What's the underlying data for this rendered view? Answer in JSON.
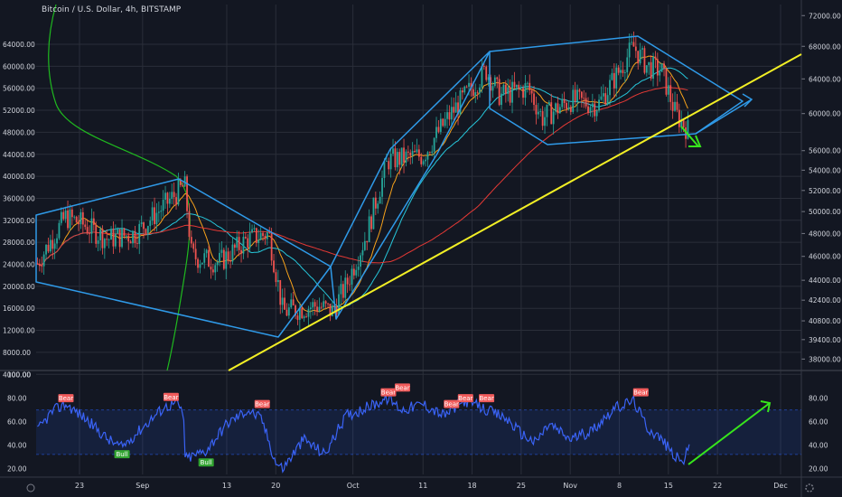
{
  "title": "Bitcoin / U.S. Dollar, 4h, BITSTAMP",
  "colors": {
    "background": "#131722",
    "grid": "#2a2e39",
    "up": "#26a69a",
    "down": "#ef5350",
    "ma_short": "#f7a21b",
    "ma_mid": "#26c6da",
    "ma_long": "#e53935",
    "volume_profile": "#1fb91f",
    "channel": "#2f9ae8",
    "trendline": "#f2ef25",
    "arrow": "#37e51c",
    "rsi": "#3a63f6",
    "rsi_band": "#2962ff",
    "bear": "#f15b5b",
    "bull": "#33a532"
  },
  "icons": {
    "bottom_left": "tradingview-logo-icon",
    "bottom_right": "settings-gear-icon"
  },
  "chart_data": [
    {
      "type": "candlestick",
      "title": "Bitcoin / U.S. Dollar, 4h, BITSTAMP",
      "x_ticks": [
        "23",
        "Sep",
        "13",
        "20",
        "Oct",
        "11",
        "18",
        "25",
        "Nov",
        "8",
        "15",
        "22",
        "Dec"
      ],
      "left_axis_ticks": [
        "64000.00",
        "60000.00",
        "56000.00",
        "52000.00",
        "48000.00",
        "44000.00",
        "40000.00",
        "36000.00",
        "32000.00",
        "28000.00",
        "24000.00",
        "20000.00",
        "16000.00",
        "12000.00",
        "8000.00",
        "4000.00"
      ],
      "right_axis_ticks": [
        "72000.00",
        "68000.00",
        "64000.00",
        "60000.00",
        "56000.00",
        "54000.00",
        "52000.00",
        "50000.00",
        "48000.00",
        "46000.00",
        "44000.00",
        "42400.00",
        "40800.00",
        "39400.00",
        "38000.00"
      ],
      "right_axis_scale": "log",
      "ylim": [
        37200,
        73500
      ],
      "grid": true,
      "price_path": [
        {
          "x": "17 Aug",
          "y": 45400
        },
        {
          "x": "21 Aug",
          "y": 49500
        },
        {
          "x": "23 Aug",
          "y": 49000
        },
        {
          "x": "27 Aug",
          "y": 47500
        },
        {
          "x": "31 Aug",
          "y": 48000
        },
        {
          "x": "4 Sep",
          "y": 50500
        },
        {
          "x": "7 Sep",
          "y": 52500
        },
        {
          "x": "8 Sep",
          "y": 46000
        },
        {
          "x": "12 Sep",
          "y": 45500
        },
        {
          "x": "16 Sep",
          "y": 47500
        },
        {
          "x": "19 Sep",
          "y": 48000
        },
        {
          "x": "21 Sep",
          "y": 41500
        },
        {
          "x": "26 Sep",
          "y": 42000
        },
        {
          "x": "28 Sep",
          "y": 41500
        },
        {
          "x": "30 Sep",
          "y": 43500
        },
        {
          "x": "3 Oct",
          "y": 48000
        },
        {
          "x": "6 Oct",
          "y": 55000
        },
        {
          "x": "11 Oct",
          "y": 55500
        },
        {
          "x": "15 Oct",
          "y": 60000
        },
        {
          "x": "20 Oct",
          "y": 65000
        },
        {
          "x": "22 Oct",
          "y": 62000
        },
        {
          "x": "26 Oct",
          "y": 63000
        },
        {
          "x": "28 Oct",
          "y": 59500
        },
        {
          "x": "1 Nov",
          "y": 61500
        },
        {
          "x": "5 Nov",
          "y": 61000
        },
        {
          "x": "8 Nov",
          "y": 65000
        },
        {
          "x": "10 Nov",
          "y": 68000
        },
        {
          "x": "12 Nov",
          "y": 65500
        },
        {
          "x": "14 Nov",
          "y": 65000
        },
        {
          "x": "16 Nov",
          "y": 60000
        },
        {
          "x": "18 Nov",
          "y": 58000
        }
      ],
      "moving_averages": [
        "short",
        "mid",
        "long"
      ],
      "volume_profile": true,
      "annotations": {
        "channels": 3,
        "trendline": "rising support",
        "arrows": [
          "right",
          "down-right"
        ]
      }
    },
    {
      "type": "line",
      "title": "",
      "ylim": [
        15,
        102
      ],
      "left_axis_ticks": [
        "100.00",
        "80.00",
        "60.00",
        "40.00",
        "20.00"
      ],
      "right_axis_ticks": [
        "80.00",
        "60.00",
        "40.00",
        "20.00"
      ],
      "bands": [
        32,
        70
      ],
      "grid": true,
      "series": [
        {
          "values": [
            {
              "x": "17 Aug",
              "y": 52
            },
            {
              "x": "19 Aug",
              "y": 68
            },
            {
              "x": "21 Aug",
              "y": 75
            },
            {
              "x": "24 Aug",
              "y": 62
            },
            {
              "x": "27 Aug",
              "y": 45
            },
            {
              "x": "29 Aug",
              "y": 38
            },
            {
              "x": "1 Sep",
              "y": 55
            },
            {
              "x": "4 Sep",
              "y": 72
            },
            {
              "x": "6 Sep",
              "y": 76
            },
            {
              "x": "7 Sep",
              "y": 62
            },
            {
              "x": "7 Sep",
              "y": 28
            },
            {
              "x": "10 Sep",
              "y": 35
            },
            {
              "x": "13 Sep",
              "y": 58
            },
            {
              "x": "16 Sep",
              "y": 70
            },
            {
              "x": "18 Sep",
              "y": 62
            },
            {
              "x": "20 Sep",
              "y": 25
            },
            {
              "x": "21 Sep",
              "y": 20
            },
            {
              "x": "24 Sep",
              "y": 45
            },
            {
              "x": "27 Sep",
              "y": 32
            },
            {
              "x": "30 Sep",
              "y": 65
            },
            {
              "x": "3 Oct",
              "y": 72
            },
            {
              "x": "6 Oct",
              "y": 80
            },
            {
              "x": "8 Oct",
              "y": 70
            },
            {
              "x": "11 Oct",
              "y": 75
            },
            {
              "x": "14 Oct",
              "y": 65
            },
            {
              "x": "17 Oct",
              "y": 78
            },
            {
              "x": "20 Oct",
              "y": 70
            },
            {
              "x": "23 Oct",
              "y": 62
            },
            {
              "x": "25 Oct",
              "y": 50
            },
            {
              "x": "27 Oct",
              "y": 42
            },
            {
              "x": "29 Oct",
              "y": 58
            },
            {
              "x": "1 Nov",
              "y": 45
            },
            {
              "x": "4 Nov",
              "y": 52
            },
            {
              "x": "7 Nov",
              "y": 70
            },
            {
              "x": "10 Nov",
              "y": 78
            },
            {
              "x": "12 Nov",
              "y": 55
            },
            {
              "x": "14 Nov",
              "y": 45
            },
            {
              "x": "16 Nov",
              "y": 30
            },
            {
              "x": "17 Nov",
              "y": 25
            },
            {
              "x": "18 Nov",
              "y": 38
            }
          ]
        }
      ],
      "labels": [
        {
          "text": "Bear",
          "x": "21 Aug",
          "y": 75
        },
        {
          "text": "Bull",
          "x": "29 Aug",
          "y": 38
        },
        {
          "text": "Bear",
          "x": "5 Sep",
          "y": 76
        },
        {
          "text": "Bull",
          "x": "10 Sep",
          "y": 31
        },
        {
          "text": "Bear",
          "x": "18 Sep",
          "y": 70
        },
        {
          "text": "Bear",
          "x": "6 Oct",
          "y": 80
        },
        {
          "text": "Bear",
          "x": "8 Oct",
          "y": 84
        },
        {
          "text": "Bear",
          "x": "15 Oct",
          "y": 70
        },
        {
          "text": "Bear",
          "x": "17 Oct",
          "y": 75
        },
        {
          "text": "Bear",
          "x": "20 Oct",
          "y": 75
        },
        {
          "text": "Bear",
          "x": "11 Nov",
          "y": 80
        }
      ]
    }
  ]
}
